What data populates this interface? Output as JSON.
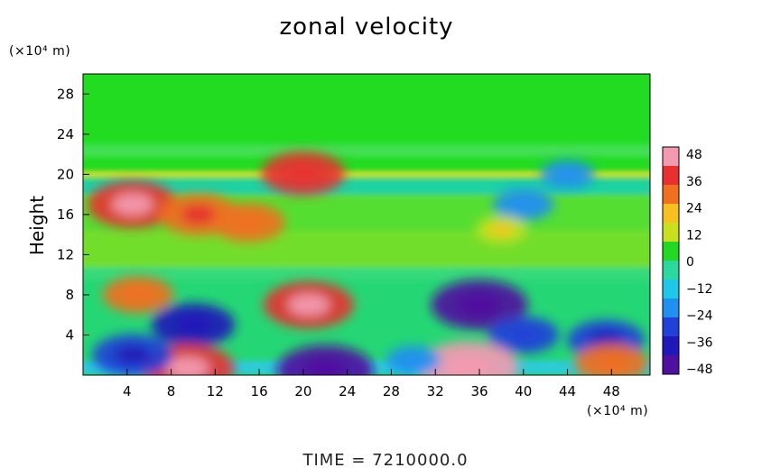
{
  "chart_data": {
    "type": "heatmap",
    "title": "zonal velocity",
    "xlabel": "",
    "ylabel": "Height",
    "x_unit_label": "(×10⁴ m)",
    "y_unit_label": "(×10⁴ m)",
    "footer": "TIME  =  7210000.0",
    "xlim": [
      0,
      51.5
    ],
    "ylim": [
      0,
      30
    ],
    "x_ticks": [
      "4",
      "8",
      "12",
      "16",
      "20",
      "24",
      "28",
      "32",
      "36",
      "40",
      "44",
      "48"
    ],
    "y_ticks": [
      "4",
      "8",
      "12",
      "16",
      "20",
      "24",
      "28"
    ],
    "colorbar": {
      "range": [
        -48,
        48
      ],
      "ticks": [
        "48",
        "36",
        "24",
        "12",
        "0",
        "−12",
        "−24",
        "−36",
        "−48"
      ],
      "colors": [
        "#f39ab0",
        "#e83030",
        "#f07020",
        "#f5c020",
        "#c8e020",
        "#22d822",
        "#2ad8a0",
        "#20c8e8",
        "#2090f0",
        "#2040d8",
        "#2018b8",
        "#5010a0"
      ]
    },
    "field_features": [
      {
        "x": 4.5,
        "y": 17.0,
        "value": 40
      },
      {
        "x": 10.5,
        "y": 16.0,
        "value": 34
      },
      {
        "x": 15.0,
        "y": 15.2,
        "value": 30
      },
      {
        "x": 5.0,
        "y": 8.0,
        "value": 28
      },
      {
        "x": 20.5,
        "y": 7.0,
        "value": 40
      },
      {
        "x": 10.0,
        "y": 5.0,
        "value": -36
      },
      {
        "x": 36.0,
        "y": 7.0,
        "value": -44
      },
      {
        "x": 40.0,
        "y": 4.0,
        "value": -28
      },
      {
        "x": 47.5,
        "y": 3.5,
        "value": -32
      },
      {
        "x": 48.0,
        "y": 1.2,
        "value": 30
      },
      {
        "x": 9.5,
        "y": 0.7,
        "value": 42
      },
      {
        "x": 35.0,
        "y": 0.8,
        "value": 46
      },
      {
        "x": 22.0,
        "y": 0.5,
        "value": -44
      },
      {
        "x": 4.5,
        "y": 2.0,
        "value": -34
      },
      {
        "x": 40.0,
        "y": 17.0,
        "value": -22
      },
      {
        "x": 20.0,
        "y": 20.1,
        "value": 36
      },
      {
        "x": 44.0,
        "y": 20.0,
        "value": -18
      },
      {
        "x": 38.0,
        "y": 14.5,
        "value": 16
      },
      {
        "x": 30.0,
        "y": 1.5,
        "value": -18
      }
    ]
  }
}
